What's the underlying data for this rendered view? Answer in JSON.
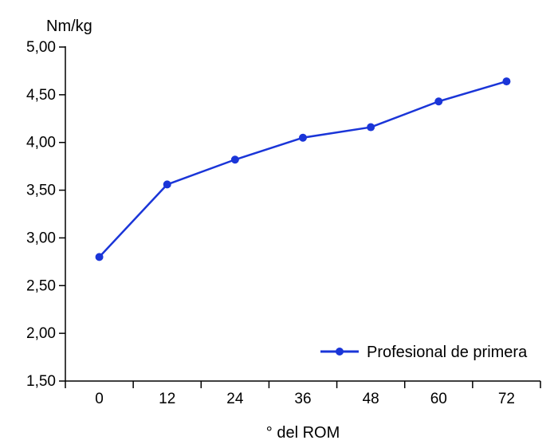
{
  "chart_data": {
    "type": "line",
    "title": "",
    "ylabel": "Nm/kg",
    "xlabel": "° del ROM",
    "categories": [
      "0",
      "12",
      "24",
      "36",
      "48",
      "60",
      "72"
    ],
    "ylim": [
      1.5,
      5.0
    ],
    "yticks": [
      "1,50",
      "2,00",
      "2,50",
      "3,00",
      "3,50",
      "4,00",
      "4,50",
      "5,00"
    ],
    "series": [
      {
        "name": "Profesional de primera",
        "color": "#1a35d8",
        "values": [
          2.8,
          3.56,
          3.82,
          4.05,
          4.16,
          4.43,
          4.64
        ]
      }
    ],
    "legend_position": "bottom-right",
    "grid": false
  }
}
